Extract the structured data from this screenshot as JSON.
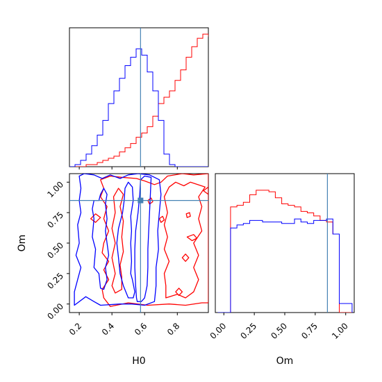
{
  "chart_data": {
    "type": "corner",
    "parameters": [
      "H0",
      "Om"
    ],
    "truth": {
      "H0": 0.575,
      "Om": 0.85
    },
    "truth_color": "#4682b4",
    "series_colors": {
      "red": "#ff0000",
      "blue": "#0000ff"
    },
    "h0_ticks": [
      "0.2",
      "0.4",
      "0.6",
      "0.8"
    ],
    "h0_tick_values": [
      0.2,
      0.4,
      0.6,
      0.8
    ],
    "om_ticks": [
      "0.00",
      "0.25",
      "0.50",
      "0.75",
      "1.00"
    ],
    "om_tick_values": [
      0,
      0.25,
      0.5,
      0.75,
      1.0
    ],
    "h0_range": [
      0.14,
      0.99
    ],
    "om_range": [
      -0.07,
      1.07
    ],
    "hist_h0": {
      "bin_start": 0.14,
      "bin_width": 0.034,
      "red": [
        0,
        0,
        0,
        1,
        1,
        2,
        3,
        4,
        5,
        7,
        9,
        11,
        14,
        16,
        19,
        24,
        30,
        33,
        36,
        41,
        46,
        52,
        57,
        61,
        63,
        62,
        55
      ],
      "blue": [
        0,
        1,
        3,
        6,
        10,
        15,
        22,
        30,
        36,
        42,
        48,
        52,
        56,
        53,
        45,
        36,
        22,
        6,
        1,
        0,
        0,
        0,
        0,
        0,
        0,
        0,
        0
      ],
      "ymax": 66
    },
    "hist_om": {
      "bin_start": -0.05,
      "bin_width": 0.0525,
      "red": [
        0,
        0,
        70,
        71,
        73,
        78,
        81,
        81,
        80,
        76,
        72,
        71,
        70,
        67,
        66,
        64,
        61,
        60,
        52,
        0,
        0
      ],
      "blue": [
        0,
        0,
        56,
        58,
        59,
        61,
        61,
        60,
        60,
        60,
        59,
        59,
        62,
        60,
        59,
        61,
        61,
        62,
        52,
        6,
        6
      ],
      "ymax": 92
    },
    "contours": {
      "blue": [
        [
          [
            0.555,
            0.02
          ],
          [
            0.58,
            0.02
          ],
          [
            0.6,
            0.05
          ],
          [
            0.615,
            0.15
          ],
          [
            0.62,
            0.3
          ],
          [
            0.62,
            0.45
          ],
          [
            0.625,
            0.6
          ],
          [
            0.63,
            0.75
          ],
          [
            0.635,
            0.9
          ],
          [
            0.64,
            1.04
          ],
          [
            0.6,
            1.05
          ],
          [
            0.575,
            1.02
          ],
          [
            0.57,
            0.9
          ],
          [
            0.56,
            0.75
          ],
          [
            0.545,
            0.6
          ],
          [
            0.54,
            0.45
          ],
          [
            0.54,
            0.3
          ],
          [
            0.545,
            0.15
          ],
          [
            0.55,
            0.05
          ],
          [
            0.555,
            0.02
          ]
        ],
        [
          [
            0.5,
            0.05
          ],
          [
            0.53,
            0.05
          ],
          [
            0.54,
            0.1
          ],
          [
            0.525,
            0.2
          ],
          [
            0.515,
            0.25
          ],
          [
            0.52,
            0.35
          ],
          [
            0.515,
            0.5
          ],
          [
            0.52,
            0.6
          ],
          [
            0.515,
            0.72
          ],
          [
            0.53,
            0.85
          ],
          [
            0.525,
            0.96
          ],
          [
            0.5,
            1.0
          ],
          [
            0.48,
            0.95
          ],
          [
            0.475,
            0.85
          ],
          [
            0.465,
            0.75
          ],
          [
            0.44,
            0.62
          ],
          [
            0.43,
            0.5
          ],
          [
            0.44,
            0.38
          ],
          [
            0.45,
            0.25
          ],
          [
            0.47,
            0.15
          ],
          [
            0.5,
            0.05
          ]
        ],
        [
          [
            0.17,
            -0.01
          ],
          [
            0.24,
            0.06
          ],
          [
            0.29,
            0.02
          ],
          [
            0.33,
            -0.01
          ],
          [
            0.45,
            0.0
          ],
          [
            0.52,
            0.0
          ],
          [
            0.6,
            -0.01
          ],
          [
            0.66,
            0.02
          ],
          [
            0.67,
            0.15
          ],
          [
            0.67,
            0.3
          ],
          [
            0.685,
            0.45
          ],
          [
            0.68,
            0.6
          ],
          [
            0.69,
            0.75
          ],
          [
            0.7,
            0.9
          ],
          [
            0.69,
            1.02
          ],
          [
            0.63,
            1.06
          ],
          [
            0.56,
            1.07
          ],
          [
            0.5,
            1.06
          ],
          [
            0.45,
            1.03
          ],
          [
            0.39,
            1.06
          ],
          [
            0.34,
            1.03
          ],
          [
            0.29,
            1.06
          ],
          [
            0.23,
            1.07
          ],
          [
            0.2,
            1.05
          ],
          [
            0.21,
            0.95
          ],
          [
            0.2,
            0.85
          ],
          [
            0.21,
            0.75
          ],
          [
            0.19,
            0.65
          ],
          [
            0.2,
            0.5
          ],
          [
            0.18,
            0.4
          ],
          [
            0.21,
            0.3
          ],
          [
            0.19,
            0.2
          ],
          [
            0.17,
            0.1
          ],
          [
            0.17,
            -0.01
          ]
        ],
        [
          [
            0.29,
            0.85
          ],
          [
            0.32,
            0.85
          ],
          [
            0.33,
            0.9
          ],
          [
            0.35,
            0.95
          ],
          [
            0.37,
            0.9
          ],
          [
            0.36,
            0.82
          ],
          [
            0.37,
            0.7
          ],
          [
            0.36,
            0.6
          ],
          [
            0.37,
            0.5
          ],
          [
            0.38,
            0.4
          ],
          [
            0.36,
            0.3
          ],
          [
            0.37,
            0.2
          ],
          [
            0.35,
            0.12
          ],
          [
            0.33,
            0.13
          ],
          [
            0.32,
            0.25
          ],
          [
            0.29,
            0.3
          ],
          [
            0.3,
            0.45
          ],
          [
            0.28,
            0.55
          ],
          [
            0.29,
            0.7
          ],
          [
            0.28,
            0.78
          ],
          [
            0.29,
            0.85
          ]
        ]
      ],
      "red": [
        [
          [
            0.39,
            -0.02
          ],
          [
            0.5,
            0.01
          ],
          [
            0.62,
            -0.01
          ],
          [
            0.75,
            0.0
          ],
          [
            0.85,
            -0.01
          ],
          [
            0.95,
            0.01
          ],
          [
            0.99,
            0.01
          ],
          [
            0.99,
            1.07
          ],
          [
            0.9,
            1.06
          ],
          [
            0.83,
            1.07
          ],
          [
            0.74,
            1.05
          ],
          [
            0.7,
            1.0
          ],
          [
            0.66,
            0.98
          ],
          [
            0.6,
            1.01
          ],
          [
            0.55,
            1.03
          ],
          [
            0.46,
            1.04
          ],
          [
            0.39,
            1.05
          ],
          [
            0.33,
            1.02
          ],
          [
            0.35,
            0.95
          ],
          [
            0.33,
            0.88
          ],
          [
            0.37,
            0.8
          ],
          [
            0.35,
            0.7
          ],
          [
            0.38,
            0.6
          ],
          [
            0.35,
            0.5
          ],
          [
            0.34,
            0.42
          ],
          [
            0.38,
            0.35
          ],
          [
            0.35,
            0.28
          ],
          [
            0.38,
            0.2
          ],
          [
            0.34,
            0.12
          ],
          [
            0.35,
            0.05
          ],
          [
            0.39,
            -0.02
          ]
        ],
        [
          [
            0.73,
            0.05
          ],
          [
            0.8,
            0.08
          ],
          [
            0.85,
            0.05
          ],
          [
            0.9,
            0.1
          ],
          [
            0.93,
            0.2
          ],
          [
            0.9,
            0.3
          ],
          [
            0.93,
            0.4
          ],
          [
            0.9,
            0.5
          ],
          [
            0.95,
            0.6
          ],
          [
            0.93,
            0.7
          ],
          [
            0.95,
            0.8
          ],
          [
            0.93,
            0.88
          ],
          [
            0.97,
            0.96
          ],
          [
            0.88,
            1.0
          ],
          [
            0.84,
            0.97
          ],
          [
            0.79,
            1.0
          ],
          [
            0.75,
            0.96
          ],
          [
            0.72,
            0.88
          ],
          [
            0.74,
            0.75
          ],
          [
            0.72,
            0.65
          ],
          [
            0.74,
            0.55
          ],
          [
            0.72,
            0.45
          ],
          [
            0.75,
            0.35
          ],
          [
            0.72,
            0.25
          ],
          [
            0.73,
            0.15
          ],
          [
            0.73,
            0.05
          ]
        ],
        [
          [
            0.42,
            0.09
          ],
          [
            0.46,
            0.12
          ],
          [
            0.46,
            0.22
          ],
          [
            0.45,
            0.32
          ],
          [
            0.47,
            0.43
          ],
          [
            0.46,
            0.55
          ],
          [
            0.47,
            0.68
          ],
          [
            0.45,
            0.8
          ],
          [
            0.47,
            0.9
          ],
          [
            0.44,
            0.95
          ],
          [
            0.41,
            0.88
          ],
          [
            0.42,
            0.75
          ],
          [
            0.4,
            0.62
          ],
          [
            0.42,
            0.5
          ],
          [
            0.4,
            0.38
          ],
          [
            0.42,
            0.25
          ],
          [
            0.4,
            0.15
          ],
          [
            0.42,
            0.09
          ]
        ],
        [
          [
            0.27,
            0.7
          ],
          [
            0.3,
            0.74
          ],
          [
            0.33,
            0.71
          ],
          [
            0.3,
            0.67
          ],
          [
            0.27,
            0.7
          ]
        ],
        [
          [
            0.855,
            0.74
          ],
          [
            0.875,
            0.75
          ],
          [
            0.88,
            0.72
          ],
          [
            0.86,
            0.71
          ],
          [
            0.855,
            0.74
          ]
        ],
        [
          [
            0.96,
            0.93
          ],
          [
            0.99,
            0.96
          ],
          [
            0.99,
            0.9
          ],
          [
            0.96,
            0.93
          ]
        ],
        [
          [
            0.86,
            0.55
          ],
          [
            0.9,
            0.57
          ],
          [
            0.92,
            0.54
          ],
          [
            0.89,
            0.52
          ],
          [
            0.86,
            0.55
          ]
        ],
        [
          [
            0.83,
            0.38
          ],
          [
            0.85,
            0.41
          ],
          [
            0.87,
            0.38
          ],
          [
            0.85,
            0.35
          ],
          [
            0.83,
            0.38
          ]
        ],
        [
          [
            0.79,
            0.1
          ],
          [
            0.81,
            0.13
          ],
          [
            0.83,
            0.1
          ],
          [
            0.81,
            0.07
          ],
          [
            0.79,
            0.1
          ]
        ],
        [
          [
            0.62,
            0.85
          ],
          [
            0.64,
            0.87
          ],
          [
            0.65,
            0.84
          ],
          [
            0.63,
            0.82
          ],
          [
            0.62,
            0.85
          ]
        ],
        [
          [
            0.69,
            0.7
          ],
          [
            0.71,
            0.72
          ],
          [
            0.72,
            0.69
          ],
          [
            0.7,
            0.67
          ],
          [
            0.69,
            0.7
          ]
        ]
      ]
    },
    "xlabel_h0": "H0",
    "xlabel_om": "Om",
    "ylabel_om": "Om"
  }
}
